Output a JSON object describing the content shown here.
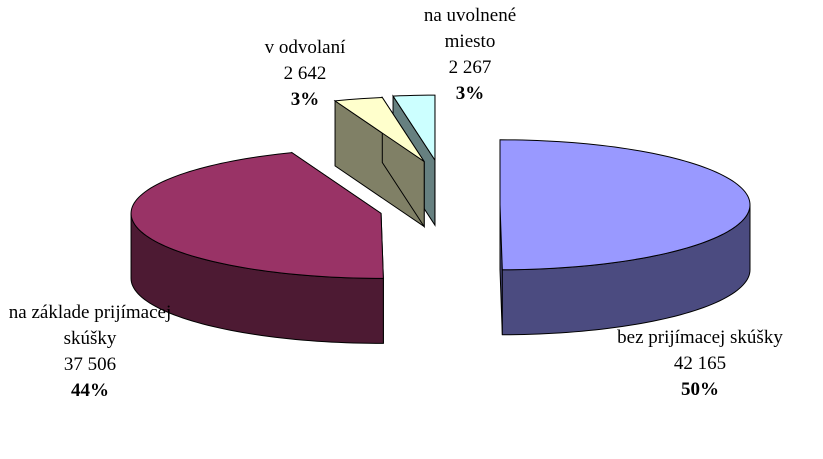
{
  "chart_data": {
    "type": "pie3d",
    "categories": [
      "bez prijímacej skúšky",
      "na základe prijímacej skúšky",
      "v odvolaní",
      "na uvolnené miesto"
    ],
    "values": [
      42165,
      37506,
      2642,
      2267
    ],
    "value_labels": [
      "42 165",
      "37 506",
      "2 642",
      "2 267"
    ],
    "percent_labels": [
      "50%",
      "44%",
      "3%",
      "3%"
    ],
    "colors": [
      "#9999ff",
      "#993366",
      "#ffffcc",
      "#ccffff"
    ],
    "side_colors": [
      "#4b4b80",
      "#4d1a33",
      "#808066",
      "#668080"
    ]
  }
}
